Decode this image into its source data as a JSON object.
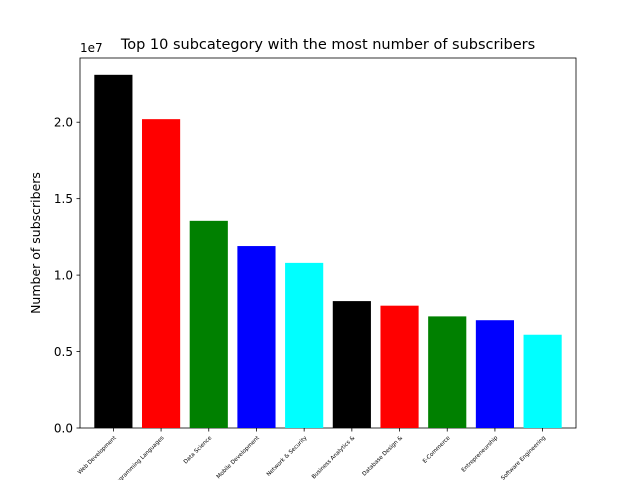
{
  "chart_data": {
    "type": "bar",
    "title": "Top 10 subcategory with the most number of subscribers",
    "xlabel": "",
    "ylabel": "Number of subscribers",
    "y_offset_label": "1e7",
    "ylim": [
      0,
      2.42
    ],
    "yticks": [
      0.0,
      0.5,
      1.0,
      1.5,
      2.0
    ],
    "ytick_labels": [
      "0.0",
      "0.5",
      "1.0",
      "1.5",
      "2.0"
    ],
    "categories": [
      "Web Development",
      "Programming Languages",
      "Data Science",
      "Mobile Development",
      "Network & Security",
      "Business Analytics &",
      "Database Design &",
      "E-Commerce",
      "Entrepreneurship",
      "Software Engineering"
    ],
    "values": [
      2.31,
      2.02,
      1.355,
      1.19,
      1.08,
      0.83,
      0.8,
      0.73,
      0.705,
      0.61
    ],
    "bar_colors": [
      "#000000",
      "#ff0000",
      "#008000",
      "#0000ff",
      "#00ffff",
      "#000000",
      "#ff0000",
      "#008000",
      "#0000ff",
      "#00ffff"
    ],
    "grid": false,
    "legend": "none"
  }
}
